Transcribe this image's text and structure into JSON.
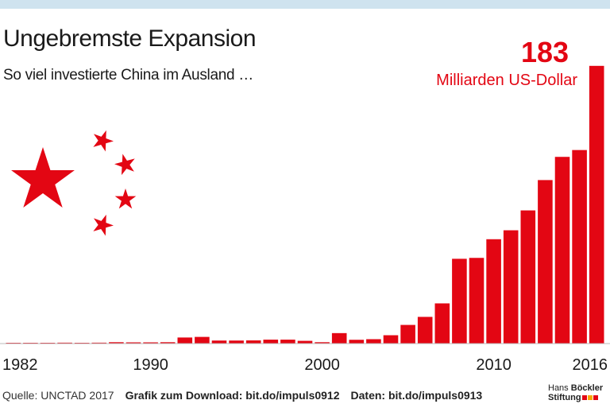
{
  "header": {
    "title": "Ungebremste Expansion",
    "subtitle": "So viel investierte China im Ausland …"
  },
  "footer": {
    "source": "Quelle: UNCTAD 2017",
    "download": "Grafik zum Download: bit.do/impuls0912",
    "data": "Daten: bit.do/impuls0913"
  },
  "logo": {
    "line1_light": "Hans",
    "line1_bold": "Böckler",
    "line2": "Stiftung",
    "colors": [
      "#e30613",
      "#f7a600",
      "#e30613"
    ]
  },
  "colors": {
    "bar": "#e30613",
    "accent": "#e30613",
    "topband": "#cfe3ef",
    "text": "#1a1a1a"
  },
  "decoration": {
    "icon": "china-flag-stars-icon"
  },
  "chart_data": {
    "type": "bar",
    "title": "Ungebremste Expansion",
    "subtitle": "So viel investierte China im Ausland …",
    "unit": "Milliarden US-Dollar",
    "xlabel": "",
    "ylabel": "",
    "ylim": [
      0,
      183
    ],
    "grid": false,
    "legend": "none",
    "categories": [
      "1982",
      "1983",
      "1984",
      "1985",
      "1986",
      "1987",
      "1988",
      "1989",
      "1990",
      "1991",
      "1992",
      "1993",
      "1994",
      "1995",
      "1996",
      "1997",
      "1998",
      "1999",
      "2000",
      "2001",
      "2002",
      "2003",
      "2004",
      "2005",
      "2006",
      "2007",
      "2008",
      "2009",
      "2010",
      "2011",
      "2012",
      "2013",
      "2014",
      "2015",
      "2016"
    ],
    "values": [
      0.04,
      0.09,
      0.13,
      0.6,
      0.5,
      0.6,
      0.9,
      0.8,
      0.8,
      0.9,
      4.0,
      4.4,
      2.0,
      2.0,
      2.1,
      2.6,
      2.6,
      1.8,
      0.9,
      6.9,
      2.5,
      2.9,
      5.5,
      12.3,
      17.6,
      26.5,
      55.9,
      56.5,
      68.8,
      74.7,
      87.8,
      107.8,
      123.1,
      127.6,
      183.1
    ],
    "tick_labels": [
      "1982",
      "1990",
      "2000",
      "2010",
      "2016"
    ],
    "annotation": {
      "value_label": "183",
      "unit_label": "Milliarden US-Dollar",
      "target": "2016"
    }
  }
}
